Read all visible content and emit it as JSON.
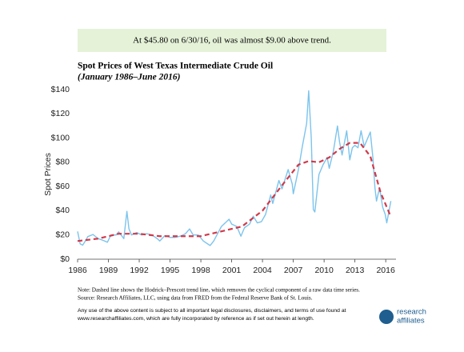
{
  "chart_data": {
    "type": "line",
    "annotation": "At $45.80 on 6/30/16, oil was almost $9.00 above trend.",
    "title": "Spot Prices of West Texas Intermediate Crude Oil",
    "subtitle": "(January 1986–June 2016)",
    "y_label": "Spot Prices",
    "notes": [
      "Note: Dashed line shows the Hodrick–Prescott trend line, which removes the cyclical component of a raw data time series.",
      "Source: Research Affiliates, LLC, using data from FRED from the Federal Reserve Bank of St. Louis."
    ],
    "disclaimer": [
      "Any use of the above content is subject to all important legal disclosures, disclaimers, and terms of use found at",
      "www.researchaffiliates.com, which are fully incorporated by reference as if set out herein at length."
    ],
    "logo": [
      "research",
      "affiliates"
    ],
    "xlim": [
      1986,
      2017
    ],
    "xticks": [
      1986,
      1989,
      1992,
      1995,
      1998,
      2001,
      2004,
      2007,
      2010,
      2013,
      2016
    ],
    "ylim": [
      0,
      140
    ],
    "yticks": [
      {
        "value": 0,
        "label": "$0"
      },
      {
        "value": 20,
        "label": "$20"
      },
      {
        "value": 40,
        "label": "$40"
      },
      {
        "value": 60,
        "label": "$60"
      },
      {
        "value": 80,
        "label": "$80"
      },
      {
        "value": 100,
        "label": "$100"
      },
      {
        "value": 120,
        "label": "$120"
      },
      {
        "value": 140,
        "label": "$140"
      }
    ],
    "grid": false,
    "series": [
      {
        "color": "#7cc4ec",
        "style": "solid",
        "x": [
          1986.0,
          1986.25,
          1986.5,
          1986.75,
          1987.0,
          1987.5,
          1988.0,
          1988.5,
          1988.9,
          1989.25,
          1989.75,
          1990.0,
          1990.5,
          1990.8,
          1991.0,
          1991.25,
          1991.75,
          1992.25,
          1992.75,
          1993.25,
          1993.75,
          1994.0,
          1994.5,
          1995.0,
          1995.5,
          1996.0,
          1996.5,
          1996.9,
          1997.25,
          1997.75,
          1998.25,
          1998.9,
          1999.25,
          1999.75,
          2000.0,
          2000.75,
          2001.0,
          2001.5,
          2001.9,
          2002.25,
          2002.75,
          2003.1,
          2003.5,
          2003.9,
          2004.3,
          2004.8,
          2005.0,
          2005.6,
          2005.9,
          2006.5,
          2006.9,
          2007.0,
          2007.5,
          2007.9,
          2008.3,
          2008.5,
          2008.75,
          2008.95,
          2009.1,
          2009.5,
          2009.9,
          2010.3,
          2010.5,
          2010.9,
          2011.3,
          2011.5,
          2011.75,
          2012.2,
          2012.5,
          2012.75,
          2013.0,
          2013.3,
          2013.6,
          2013.9,
          2014.5,
          2014.75,
          2014.95,
          2015.1,
          2015.4,
          2015.7,
          2015.95,
          2016.1,
          2016.5
        ],
        "values": [
          22.9,
          12.6,
          11.6,
          15,
          18.7,
          20.4,
          17,
          15.5,
          14,
          20,
          20,
          22.6,
          17,
          39.5,
          25,
          20,
          22,
          20,
          21,
          20,
          17,
          15,
          19.5,
          18,
          18,
          19,
          21,
          25,
          20,
          20,
          15,
          11.3,
          15,
          23,
          27,
          33,
          29,
          27,
          19,
          26,
          29,
          35.5,
          30,
          31,
          37,
          53,
          46,
          65,
          58,
          74,
          62,
          54,
          74,
          94,
          112,
          139,
          100,
          41,
          39,
          70,
          78,
          84,
          75,
          89,
          110,
          97,
          86,
          106,
          82,
          92,
          94,
          92,
          106,
          93,
          105,
          84,
          59,
          48,
          59,
          43,
          37,
          30,
          48
        ]
      },
      {
        "color": "#d03a4a",
        "style": "dashed",
        "x": [
          1986,
          1988,
          1990,
          1992,
          1994,
          1996,
          1998,
          2000,
          2002,
          2004,
          2006,
          2007.5,
          2008.5,
          2009.5,
          2010.5,
          2011.5,
          2012.5,
          2013.5,
          2014.5,
          2015.5,
          2016.5
        ],
        "values": [
          15,
          17,
          21,
          21,
          19,
          19,
          19,
          23,
          27,
          40,
          62,
          78,
          81,
          80,
          84,
          91,
          96,
          96,
          85,
          55,
          35
        ]
      }
    ]
  }
}
